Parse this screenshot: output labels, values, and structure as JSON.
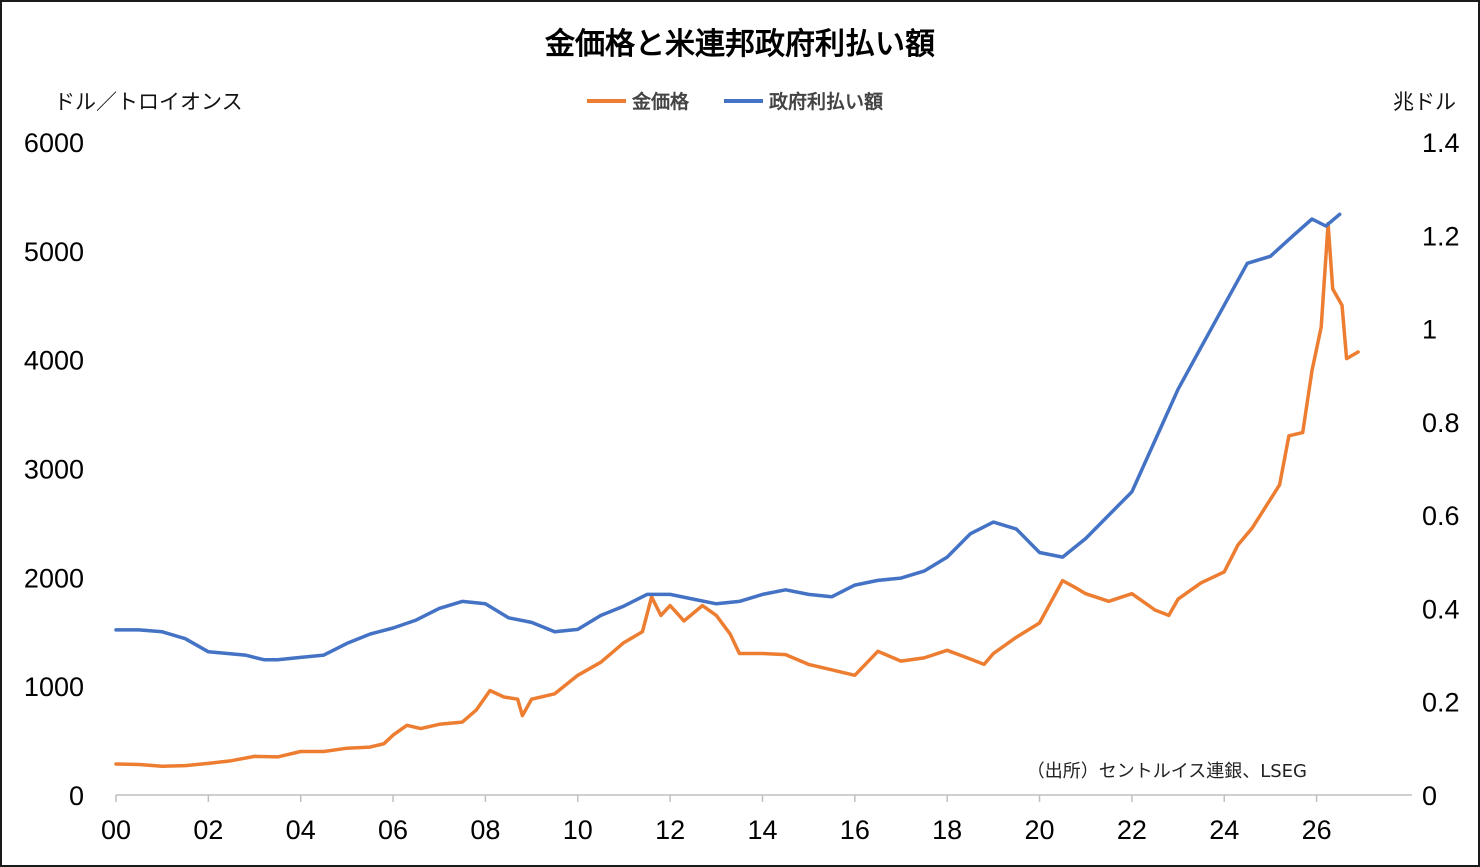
{
  "chart_data": {
    "type": "line",
    "title": "金価格と米連邦政府利払い額",
    "left_axis": {
      "unit_label": "ドル／トロイオンス",
      "ylim": [
        0,
        6000
      ],
      "ticks": [
        "0",
        "1000",
        "2000",
        "3000",
        "4000",
        "5000",
        "6000"
      ]
    },
    "right_axis": {
      "unit_label": "兆ドル",
      "ylim": [
        0,
        1.4
      ],
      "ticks": [
        "0",
        "0.2",
        "0.4",
        "0.6",
        "0.8",
        "1",
        "1.2",
        "1.4"
      ]
    },
    "x_axis": {
      "ticks": [
        "00",
        "02",
        "04",
        "06",
        "08",
        "10",
        "12",
        "14",
        "16",
        "18",
        "20",
        "22",
        "24",
        "26"
      ],
      "tick_years": [
        2000,
        2002,
        2004,
        2006,
        2008,
        2010,
        2012,
        2014,
        2016,
        2018,
        2020,
        2022,
        2024,
        2026
      ],
      "xlim": [
        2000,
        2027.2
      ]
    },
    "legend_position": "top-center",
    "source_note": "（出所）セントルイス連銀、LSEG",
    "series": [
      {
        "name": "金価格",
        "axis": "left",
        "color": "#ED7D31",
        "points": [
          [
            2000.0,
            285
          ],
          [
            2000.5,
            280
          ],
          [
            2001.0,
            265
          ],
          [
            2001.5,
            270
          ],
          [
            2002.0,
            290
          ],
          [
            2002.5,
            315
          ],
          [
            2003.0,
            355
          ],
          [
            2003.5,
            350
          ],
          [
            2004.0,
            400
          ],
          [
            2004.5,
            400
          ],
          [
            2005.0,
            430
          ],
          [
            2005.5,
            440
          ],
          [
            2005.8,
            470
          ],
          [
            2006.0,
            550
          ],
          [
            2006.3,
            640
          ],
          [
            2006.6,
            610
          ],
          [
            2007.0,
            650
          ],
          [
            2007.5,
            670
          ],
          [
            2007.8,
            780
          ],
          [
            2008.1,
            960
          ],
          [
            2008.4,
            900
          ],
          [
            2008.7,
            880
          ],
          [
            2008.8,
            730
          ],
          [
            2009.0,
            880
          ],
          [
            2009.5,
            930
          ],
          [
            2010.0,
            1100
          ],
          [
            2010.5,
            1220
          ],
          [
            2011.0,
            1400
          ],
          [
            2011.4,
            1500
          ],
          [
            2011.6,
            1820
          ],
          [
            2011.8,
            1650
          ],
          [
            2012.0,
            1740
          ],
          [
            2012.3,
            1600
          ],
          [
            2012.7,
            1740
          ],
          [
            2013.0,
            1650
          ],
          [
            2013.3,
            1480
          ],
          [
            2013.5,
            1300
          ],
          [
            2014.0,
            1300
          ],
          [
            2014.5,
            1290
          ],
          [
            2015.0,
            1200
          ],
          [
            2015.5,
            1150
          ],
          [
            2016.0,
            1100
          ],
          [
            2016.5,
            1320
          ],
          [
            2017.0,
            1230
          ],
          [
            2017.5,
            1260
          ],
          [
            2018.0,
            1330
          ],
          [
            2018.5,
            1250
          ],
          [
            2018.8,
            1200
          ],
          [
            2019.0,
            1300
          ],
          [
            2019.5,
            1450
          ],
          [
            2020.0,
            1580
          ],
          [
            2020.5,
            1970
          ],
          [
            2020.8,
            1900
          ],
          [
            2021.0,
            1850
          ],
          [
            2021.5,
            1780
          ],
          [
            2022.0,
            1850
          ],
          [
            2022.5,
            1700
          ],
          [
            2022.8,
            1650
          ],
          [
            2023.0,
            1800
          ],
          [
            2023.5,
            1950
          ],
          [
            2024.0,
            2050
          ],
          [
            2024.3,
            2300
          ],
          [
            2024.6,
            2450
          ],
          [
            2024.9,
            2650
          ],
          [
            2025.2,
            2850
          ],
          [
            2025.4,
            3300
          ],
          [
            2025.7,
            3330
          ],
          [
            2025.9,
            3900
          ],
          [
            2026.1,
            4300
          ],
          [
            2026.25,
            5250
          ],
          [
            2026.35,
            4650
          ],
          [
            2026.55,
            4500
          ],
          [
            2026.65,
            4010
          ],
          [
            2026.9,
            4070
          ]
        ]
      },
      {
        "name": "政府利払い額",
        "axis": "right",
        "color": "#4472C4",
        "points": [
          [
            2000.0,
            0.354
          ],
          [
            2000.5,
            0.354
          ],
          [
            2001.0,
            0.35
          ],
          [
            2001.5,
            0.335
          ],
          [
            2002.0,
            0.307
          ],
          [
            2002.8,
            0.3
          ],
          [
            2003.2,
            0.29
          ],
          [
            2003.5,
            0.29
          ],
          [
            2004.0,
            0.295
          ],
          [
            2004.5,
            0.3
          ],
          [
            2005.0,
            0.325
          ],
          [
            2005.5,
            0.345
          ],
          [
            2006.0,
            0.358
          ],
          [
            2006.5,
            0.375
          ],
          [
            2007.0,
            0.4
          ],
          [
            2007.5,
            0.415
          ],
          [
            2008.0,
            0.41
          ],
          [
            2008.5,
            0.38
          ],
          [
            2009.0,
            0.37
          ],
          [
            2009.5,
            0.35
          ],
          [
            2010.0,
            0.355
          ],
          [
            2010.5,
            0.385
          ],
          [
            2011.0,
            0.405
          ],
          [
            2011.5,
            0.43
          ],
          [
            2012.0,
            0.43
          ],
          [
            2012.5,
            0.42
          ],
          [
            2013.0,
            0.41
          ],
          [
            2013.5,
            0.415
          ],
          [
            2014.0,
            0.43
          ],
          [
            2014.5,
            0.44
          ],
          [
            2015.0,
            0.43
          ],
          [
            2015.5,
            0.425
          ],
          [
            2016.0,
            0.45
          ],
          [
            2016.5,
            0.46
          ],
          [
            2017.0,
            0.465
          ],
          [
            2017.5,
            0.48
          ],
          [
            2018.0,
            0.51
          ],
          [
            2018.5,
            0.56
          ],
          [
            2019.0,
            0.585
          ],
          [
            2019.5,
            0.57
          ],
          [
            2020.0,
            0.52
          ],
          [
            2020.5,
            0.51
          ],
          [
            2021.0,
            0.55
          ],
          [
            2021.5,
            0.6
          ],
          [
            2022.0,
            0.65
          ],
          [
            2022.5,
            0.76
          ],
          [
            2023.0,
            0.87
          ],
          [
            2023.5,
            0.96
          ],
          [
            2024.0,
            1.05
          ],
          [
            2024.5,
            1.14
          ],
          [
            2025.0,
            1.155
          ],
          [
            2025.5,
            1.2
          ],
          [
            2025.9,
            1.235
          ],
          [
            2026.2,
            1.22
          ],
          [
            2026.5,
            1.245
          ]
        ]
      }
    ]
  }
}
